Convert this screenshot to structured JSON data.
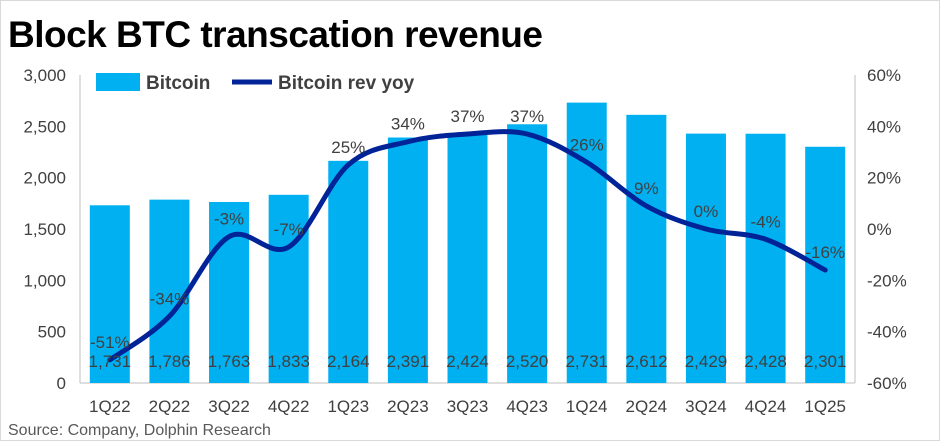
{
  "chart_data": {
    "type": "bar+line",
    "title": "Block BTC transcation revenue",
    "source": "Source: Company, Dolphin Research",
    "categories": [
      "1Q22",
      "2Q22",
      "3Q22",
      "4Q22",
      "1Q23",
      "2Q23",
      "3Q23",
      "4Q23",
      "1Q24",
      "2Q24",
      "3Q24",
      "4Q24",
      "1Q25"
    ],
    "series": [
      {
        "name": "Bitcoin",
        "type": "bar",
        "axis": "left",
        "color": "#00b0f0",
        "values": [
          1731,
          1786,
          1763,
          1833,
          2164,
          2391,
          2424,
          2520,
          2731,
          2612,
          2429,
          2428,
          2301
        ],
        "labels": [
          "1,731",
          "1,786",
          "1,763",
          "1,833",
          "2,164",
          "2,391",
          "2,424",
          "2,520",
          "2,731",
          "2,612",
          "2,429",
          "2,428",
          "2,301"
        ]
      },
      {
        "name": "Bitcoin rev yoy",
        "type": "line",
        "axis": "right",
        "color": "#002398",
        "values": [
          -51,
          -34,
          -3,
          -7,
          25,
          34,
          37,
          37,
          26,
          9,
          0,
          -4,
          -16
        ],
        "labels": [
          "-51%",
          "-34%",
          "-3%",
          "-7%",
          "25%",
          "34%",
          "37%",
          "37%",
          "26%",
          "9%",
          "0%",
          "-4%",
          "-16%"
        ]
      }
    ],
    "ylim_left": [
      0,
      3000
    ],
    "yticks_left": [
      "0",
      "500",
      "1,000",
      "1,500",
      "2,000",
      "2,500",
      "3,000"
    ],
    "ylim_right": [
      -60,
      60
    ],
    "yticks_right": [
      "-60%",
      "-40%",
      "-20%",
      "0%",
      "20%",
      "40%",
      "60%"
    ],
    "legend": "top-left",
    "grid": false
  }
}
